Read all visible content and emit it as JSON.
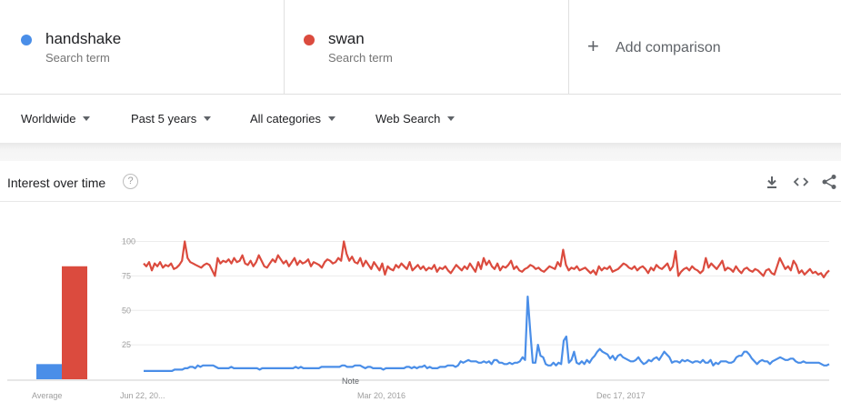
{
  "terms": [
    {
      "name": "handshake",
      "type": "Search term",
      "color": "#4a8ee8"
    },
    {
      "name": "swan",
      "type": "Search term",
      "color": "#db4b3e"
    }
  ],
  "add_comparison": {
    "icon": "+",
    "label": "Add comparison"
  },
  "filters": {
    "region": "Worldwide",
    "period": "Past 5 years",
    "category": "All categories",
    "search_type": "Web Search"
  },
  "card": {
    "title": "Interest over time",
    "help_icon": "?",
    "tools": [
      "download-icon",
      "embed-icon",
      "share-icon"
    ]
  },
  "chart_data": {
    "type": "line",
    "y_ticks": [
      "100",
      "75",
      "50",
      "25"
    ],
    "ylim": [
      0,
      100
    ],
    "x_tick_labels": [
      "Jun 22, 20...",
      "Mar 20, 2016",
      "Dec 17, 2017"
    ],
    "note_label": "Note",
    "average_label": "Average",
    "averages": [
      {
        "name": "handshake",
        "value": 11
      },
      {
        "name": "swan",
        "value": 82
      }
    ],
    "series": [
      {
        "name": "swan",
        "color": "#db4b3e",
        "values": [
          84,
          82,
          85,
          79,
          84,
          82,
          85,
          81,
          83,
          82,
          84,
          80,
          81,
          83,
          86,
          100,
          88,
          85,
          84,
          83,
          82,
          81,
          83,
          84,
          83,
          79,
          75,
          88,
          84,
          86,
          85,
          87,
          84,
          88,
          85,
          86,
          90,
          84,
          83,
          86,
          82,
          85,
          90,
          86,
          82,
          81,
          84,
          87,
          85,
          90,
          87,
          84,
          86,
          82,
          85,
          88,
          83,
          86,
          84,
          85,
          87,
          82,
          85,
          84,
          83,
          81,
          85,
          87,
          86,
          84,
          85,
          88,
          86,
          100,
          91,
          86,
          89,
          85,
          84,
          88,
          82,
          86,
          83,
          80,
          85,
          82,
          79,
          84,
          76,
          82,
          80,
          79,
          83,
          81,
          84,
          82,
          80,
          85,
          79,
          81,
          83,
          80,
          82,
          79,
          81,
          80,
          83,
          78,
          81,
          80,
          82,
          79,
          77,
          80,
          83,
          81,
          79,
          82,
          80,
          84,
          81,
          78,
          85,
          80,
          88,
          83,
          86,
          82,
          80,
          84,
          79,
          82,
          81,
          83,
          86,
          80,
          82,
          79,
          78,
          80,
          81,
          83,
          82,
          80,
          81,
          79,
          78,
          80,
          82,
          81,
          80,
          85,
          82,
          94,
          83,
          79,
          81,
          80,
          82,
          79,
          80,
          81,
          79,
          77,
          79,
          76,
          82,
          79,
          81,
          80,
          82,
          78,
          79,
          80,
          82,
          84,
          83,
          81,
          80,
          82,
          79,
          81,
          82,
          80,
          77,
          81,
          79,
          83,
          81,
          80,
          82,
          84,
          79,
          82,
          93,
          75,
          78,
          80,
          81,
          79,
          82,
          80,
          79,
          77,
          79,
          88,
          81,
          84,
          82,
          80,
          83,
          86,
          79,
          81,
          80,
          78,
          82,
          79,
          77,
          80,
          81,
          79,
          78,
          80,
          79,
          77,
          75,
          79,
          80,
          77,
          76,
          82,
          88,
          84,
          80,
          82,
          79,
          86,
          83,
          77,
          79,
          76,
          78,
          80,
          77,
          78,
          76,
          77,
          74,
          77,
          79
        ]
      },
      {
        "name": "handshake",
        "color": "#4a8ee8",
        "values": [
          6,
          6,
          6,
          6,
          6,
          6,
          6,
          6,
          6,
          6,
          6,
          6,
          7,
          7,
          7,
          7,
          8,
          8,
          9,
          9,
          8,
          10,
          9,
          10,
          10,
          10,
          10,
          10,
          9,
          8,
          8,
          8,
          8,
          8,
          9,
          8,
          8,
          8,
          8,
          8,
          8,
          8,
          8,
          8,
          8,
          7,
          8,
          8,
          8,
          8,
          8,
          8,
          8,
          8,
          8,
          8,
          8,
          8,
          8,
          9,
          8,
          9,
          8,
          8,
          8,
          8,
          8,
          8,
          8,
          9,
          9,
          9,
          9,
          9,
          9,
          9,
          9,
          10,
          10,
          9,
          9,
          9,
          10,
          10,
          10,
          9,
          8,
          9,
          9,
          8,
          8,
          8,
          8,
          7,
          8,
          8,
          8,
          8,
          8,
          8,
          8,
          8,
          9,
          9,
          8,
          9,
          8,
          9,
          9,
          10,
          8,
          9,
          8,
          8,
          8,
          9,
          9,
          9,
          10,
          10,
          10,
          9,
          10,
          13,
          12,
          13,
          14,
          13,
          13,
          13,
          12,
          12,
          13,
          12,
          13,
          11,
          14,
          14,
          12,
          12,
          11,
          11,
          12,
          11,
          12,
          12,
          13,
          16,
          14,
          60,
          35,
          12,
          12,
          25,
          17,
          16,
          11,
          10,
          10,
          12,
          10,
          12,
          11,
          28,
          31,
          12,
          14,
          20,
          12,
          11,
          13,
          11,
          14,
          12,
          15,
          17,
          20,
          22,
          20,
          19,
          18,
          15,
          17,
          14,
          17,
          18,
          16,
          15,
          14,
          13,
          13,
          14,
          16,
          13,
          11,
          12,
          14,
          13,
          15,
          16,
          14,
          17,
          20,
          18,
          16,
          12,
          13,
          13,
          12,
          14,
          13,
          14,
          13,
          12,
          13,
          13,
          12,
          14,
          12,
          12,
          14,
          10,
          12,
          11,
          13,
          13,
          13,
          12,
          12,
          13,
          16,
          17,
          17,
          20,
          20,
          18,
          15,
          13,
          11,
          13,
          14,
          13,
          13,
          11,
          13,
          14,
          15,
          16,
          15,
          14,
          14,
          15,
          15,
          13,
          12,
          12,
          13,
          12,
          12,
          12,
          12,
          12,
          12,
          11,
          10,
          10,
          11
        ]
      }
    ]
  }
}
